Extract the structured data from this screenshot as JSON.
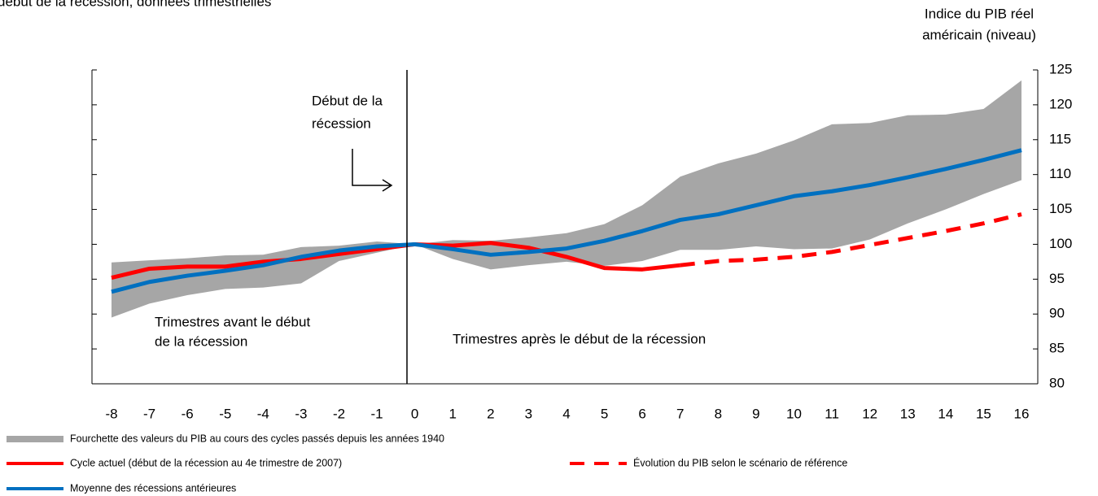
{
  "chart_data": {
    "type": "line",
    "title": "début de la récession, données trimestrielles",
    "y_axis_label": [
      "Indice du PIB réel",
      "américain (niveau)"
    ],
    "annotations": {
      "start": [
        "Début de la",
        "récession"
      ],
      "before": [
        "Trimestres avant le début",
        "de la récession"
      ],
      "after": "Trimestres après le début de la récession"
    },
    "categories": [
      -8,
      -7,
      -6,
      -5,
      -4,
      -3,
      -2,
      -1,
      0,
      1,
      2,
      3,
      4,
      5,
      6,
      7,
      8,
      9,
      10,
      11,
      12,
      13,
      14,
      15,
      16
    ],
    "band": {
      "name": "Fourchette des valeurs du PIB au cours des cycles passés depuis les années 1940",
      "color": "#a6a6a6",
      "upper": [
        97.4,
        97.7,
        98.0,
        98.4,
        98.5,
        99.6,
        99.8,
        100.4,
        100,
        100.6,
        100.5,
        101,
        101.6,
        102.9,
        105.6,
        109.7,
        111.6,
        113,
        114.9,
        117.2,
        117.4,
        118.5,
        118.6,
        119.4,
        123.5
      ],
      "lower": [
        89.5,
        91.5,
        92.7,
        93.6,
        93.8,
        94.4,
        97.6,
        98.8,
        100,
        97.9,
        96.4,
        97.0,
        97.5,
        96.9,
        97.6,
        99.2,
        99.2,
        99.7,
        99.3,
        99.4,
        100.7,
        103,
        105,
        107.2,
        109.2
      ]
    },
    "series": [
      {
        "name": "Cycle actuel (début de la récession au 4e trimestre de 2007)",
        "color": "#ff0000",
        "dashed": false,
        "values": [
          95.2,
          96.5,
          96.8,
          96.8,
          97.5,
          97.9,
          98.6,
          99.3,
          100,
          99.8,
          100.2,
          99.5,
          98.2,
          96.6,
          96.4,
          97.0,
          null,
          null,
          null,
          null,
          null,
          null,
          null,
          null,
          null
        ]
      },
      {
        "name": "Évolution du PIB selon le scénario de référence",
        "color": "#ff0000",
        "dashed": true,
        "values": [
          null,
          null,
          null,
          null,
          null,
          null,
          null,
          null,
          null,
          null,
          null,
          null,
          null,
          null,
          null,
          97.0,
          97.6,
          97.8,
          98.2,
          98.9,
          99.9,
          100.9,
          101.9,
          103.0,
          104.3
        ]
      },
      {
        "name": "Moyenne des récessions antérieures",
        "color": "#0070c0",
        "dashed": false,
        "values": [
          93.2,
          94.6,
          95.5,
          96.2,
          97.0,
          98.2,
          99.1,
          99.7,
          100,
          99.3,
          98.5,
          98.9,
          99.4,
          100.5,
          101.9,
          103.5,
          104.3,
          105.6,
          106.9,
          107.6,
          108.5,
          109.6,
          110.8,
          112.1,
          113.5
        ]
      }
    ],
    "ylim": [
      80,
      125
    ],
    "yticks": [
      80,
      85,
      90,
      95,
      100,
      105,
      110,
      115,
      120,
      125
    ]
  }
}
